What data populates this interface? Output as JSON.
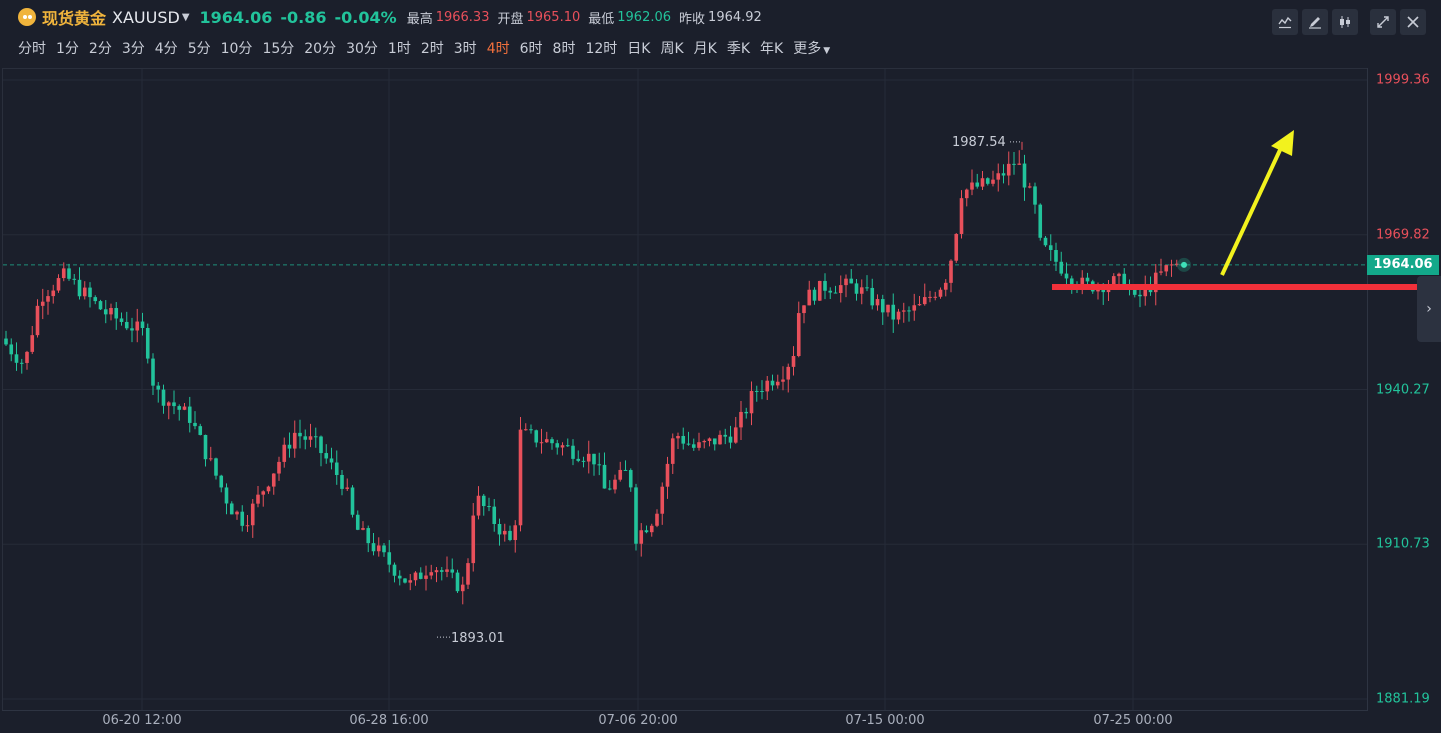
{
  "header": {
    "symbol_name": "现货黄金",
    "symbol_code": "XAUUSD",
    "caret_icon": "caret-down-icon",
    "last_price": "1964.06",
    "change": "-0.86",
    "change_pct": "-0.04%",
    "high_label": "最高",
    "high_value": "1966.33",
    "open_label": "开盘",
    "open_value": "1965.10",
    "low_label": "最低",
    "low_value": "1962.06",
    "prev_close_label": "昨收",
    "prev_close_value": "1964.92",
    "more_label": "更多"
  },
  "timeframes": [
    "分时",
    "1分",
    "2分",
    "3分",
    "4分",
    "5分",
    "10分",
    "15分",
    "20分",
    "30分",
    "1时",
    "2时",
    "3时",
    "4时",
    "6时",
    "8时",
    "12时",
    "日K",
    "周K",
    "月K",
    "季K",
    "年K"
  ],
  "active_timeframe": "4时",
  "toolbar": {
    "icons": [
      "indicator-icon",
      "draw-pencil-icon",
      "candle-style-icon"
    ],
    "right_icons": [
      "fullscreen-icon",
      "close-icon"
    ]
  },
  "colors": {
    "up": "#e8505b",
    "down": "#22c39b",
    "accent": "#f2703c",
    "trend_line": "#f2303a",
    "arrow": "#f2f21e"
  },
  "yaxis": {
    "labels": [
      {
        "text": "1999.36",
        "value": 1999.36,
        "color": "#e8505b"
      },
      {
        "text": "1969.82",
        "value": 1969.82,
        "color": "#e8505b"
      },
      {
        "text": "1940.27",
        "value": 1940.27,
        "color": "#22c39b"
      },
      {
        "text": "1910.73",
        "value": 1910.73,
        "color": "#22c39b"
      },
      {
        "text": "1881.19",
        "value": 1881.19,
        "color": "#22c39b"
      }
    ],
    "current_price": "1964.06"
  },
  "xaxis": {
    "labels": [
      "06-20 12:00",
      "06-28 16:00",
      "07-06 20:00",
      "07-15 00:00",
      "07-25 00:00"
    ]
  },
  "annotations": {
    "high_marker": "1987.54",
    "low_marker": "1893.01"
  },
  "chart_data": {
    "type": "candlestick",
    "ylim": [
      1881.19,
      1999.36
    ],
    "x": [
      "06-20 12:00",
      "06-28 16:00",
      "07-06 20:00",
      "07-15 00:00",
      "07-25 00:00"
    ],
    "high": 1987.54,
    "low": 1893.01,
    "last": 1964.06
  }
}
